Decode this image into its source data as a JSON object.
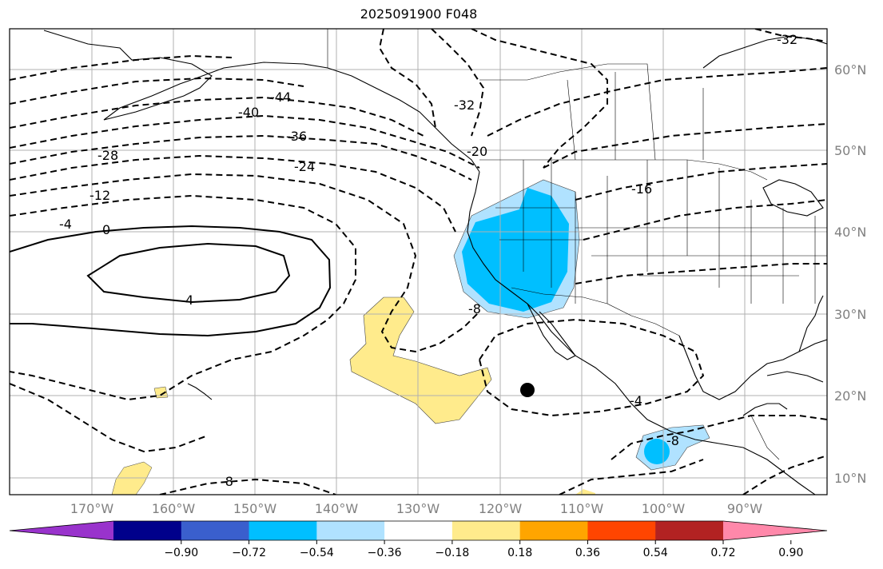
{
  "title": "2025091900 F048",
  "map": {
    "lat_labels": [
      "60°N",
      "50°N",
      "40°N",
      "30°N",
      "20°N",
      "10°N"
    ],
    "lon_labels": [
      "170°W",
      "160°W",
      "150°W",
      "140°W",
      "130°W",
      "120°W",
      "110°W",
      "100°W",
      "90°W"
    ],
    "contour_labels": [
      "-44",
      "-40",
      "-36",
      "-32",
      "-28",
      "-24",
      "-20",
      "-16",
      "-12",
      "-4",
      "0",
      "4",
      "-4",
      "-8",
      "-8",
      "-8",
      "-32"
    ],
    "marker": "storm-center-dot"
  },
  "colorbar": {
    "ticks": [
      "−0.90",
      "−0.72",
      "−0.54",
      "−0.36",
      "−0.18",
      "0.18",
      "0.36",
      "0.54",
      "0.72",
      "0.90"
    ],
    "colors": [
      "#9933cc",
      "#00008b",
      "#3a5fcd",
      "#00bfff",
      "#b0e2ff",
      "#ffffff",
      "#ffeb8c",
      "#ffa500",
      "#ff4500",
      "#b22222",
      "#ff88aa"
    ]
  }
}
